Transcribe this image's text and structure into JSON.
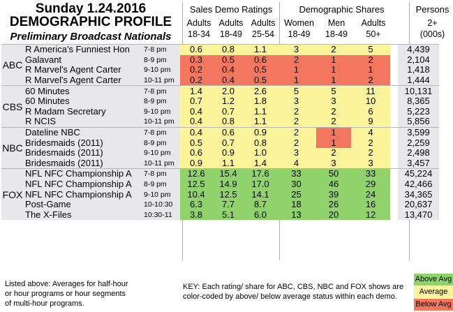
{
  "title": {
    "line1": "Sunday 1.24.2016",
    "line2": "DEMOGRAPHIC PROFILE",
    "line3": "Preliminary Broadcast Nationals"
  },
  "header": {
    "groups": [
      "Sales Demo Ratings",
      "Demographic Shares",
      "Persons"
    ],
    "columns": [
      [
        "Adults",
        "18-34"
      ],
      [
        "Adults",
        "18-49"
      ],
      [
        "Adults",
        "25-54"
      ],
      [
        "Women",
        "18-49"
      ],
      [
        "Men",
        "18-49"
      ],
      [
        "Adults",
        "50+"
      ],
      [
        "2+",
        "(000s)"
      ]
    ]
  },
  "networks": [
    {
      "name": "ABC",
      "rows": [
        {
          "show": "R America's Funniest Hon",
          "time": "7-8 pm",
          "vals": [
            "0.6",
            "0.8",
            "1.1",
            "3",
            "2",
            "5"
          ],
          "colors": [
            "av",
            "av",
            "av",
            "av",
            "av",
            "av"
          ],
          "persons": "4,439"
        },
        {
          "show": "Galavant",
          "time": "8-9 pm",
          "vals": [
            "0.3",
            "0.5",
            "0.6",
            "2",
            "1",
            "2"
          ],
          "colors": [
            "lo",
            "lo",
            "lo",
            "lo",
            "lo",
            "lo"
          ],
          "persons": "2,104"
        },
        {
          "show": "R Marvel's Agent Carter",
          "time": "9-10 pm",
          "vals": [
            "0.2",
            "0.4",
            "0.5",
            "1",
            "1",
            "1"
          ],
          "colors": [
            "lo",
            "lo",
            "lo",
            "lo",
            "lo",
            "lo"
          ],
          "persons": "1,418"
        },
        {
          "show": "R Marvel's Agent Carter",
          "time": "10-11 pm",
          "vals": [
            "0.2",
            "0.4",
            "0.5",
            "1",
            "1",
            "2"
          ],
          "colors": [
            "lo",
            "lo",
            "lo",
            "lo",
            "lo",
            "lo"
          ],
          "persons": "1,444"
        }
      ]
    },
    {
      "name": "CBS",
      "rows": [
        {
          "show": "60 Minutes",
          "time": "7-8 pm",
          "vals": [
            "1.4",
            "2.0",
            "2.6",
            "5",
            "5",
            "11"
          ],
          "colors": [
            "av",
            "av",
            "av",
            "av",
            "av",
            "av"
          ],
          "persons": "10,131"
        },
        {
          "show": "60 Minutes",
          "time": "8-9 pm",
          "vals": [
            "0.7",
            "1.2",
            "1.8",
            "3",
            "3",
            "10"
          ],
          "colors": [
            "av",
            "av",
            "av",
            "av",
            "av",
            "av"
          ],
          "persons": "8,365"
        },
        {
          "show": "R Madam Secretary",
          "time": "9-10 pm",
          "vals": [
            "0.4",
            "0.7",
            "1.1",
            "2",
            "2",
            "6"
          ],
          "colors": [
            "av",
            "av",
            "av",
            "av",
            "av",
            "av"
          ],
          "persons": "5,223"
        },
        {
          "show": "R NCIS",
          "time": "10-11 pm",
          "vals": [
            "0.4",
            "0.8",
            "1.1",
            "2",
            "2",
            "9"
          ],
          "colors": [
            "av",
            "av",
            "av",
            "av",
            "av",
            "av"
          ],
          "persons": "5,856"
        }
      ]
    },
    {
      "name": "NBC",
      "rows": [
        {
          "show": "Dateline NBC",
          "time": "7-8 pm",
          "vals": [
            "0.4",
            "0.6",
            "0.9",
            "2",
            "1",
            "4"
          ],
          "colors": [
            "av",
            "av",
            "av",
            "av",
            "lo",
            "av"
          ],
          "persons": "3,599"
        },
        {
          "show": "Bridesmaids (2011)",
          "time": "8-9 pm",
          "vals": [
            "0.5",
            "0.7",
            "0.8",
            "2",
            "1",
            "2"
          ],
          "colors": [
            "av",
            "av",
            "av",
            "av",
            "lo",
            "av"
          ],
          "persons": "2,259"
        },
        {
          "show": "Bridesmaids (2011)",
          "time": "9-10 pm",
          "vals": [
            "0.6",
            "0.9",
            "1.0",
            "3",
            "2",
            "2"
          ],
          "colors": [
            "av",
            "av",
            "av",
            "av",
            "av",
            "av"
          ],
          "persons": "2,498"
        },
        {
          "show": "Bridesmaids (2011)",
          "time": "10-11 pm",
          "vals": [
            "0.9",
            "1.1",
            "1.4",
            "4",
            "3",
            "3"
          ],
          "colors": [
            "av",
            "av",
            "av",
            "av",
            "av",
            "av"
          ],
          "persons": "3,457"
        }
      ]
    },
    {
      "name": "FOX",
      "rows": [
        {
          "show": "NFL NFC Championship A",
          "time": "7-8 pm",
          "vals": [
            "12.6",
            "15.4",
            "17.6",
            "33",
            "50",
            "33"
          ],
          "colors": [
            "hi",
            "hi",
            "hi",
            "hi",
            "hi",
            "hi"
          ],
          "persons": "45,224"
        },
        {
          "show": "NFL NFC Championship A",
          "time": "8-9 pm",
          "vals": [
            "12.5",
            "14.9",
            "17.0",
            "30",
            "46",
            "29"
          ],
          "colors": [
            "hi",
            "hi",
            "hi",
            "hi",
            "hi",
            "hi"
          ],
          "persons": "42,466"
        },
        {
          "show": "NFL NFC Championship A",
          "time": "9-10 pm",
          "vals": [
            "10.4",
            "12.5",
            "14.1",
            "25",
            "39",
            "24"
          ],
          "colors": [
            "hi",
            "hi",
            "hi",
            "hi",
            "hi",
            "hi"
          ],
          "persons": "34,365"
        },
        {
          "show": "Post-Game",
          "time": "10-10:30",
          "vals": [
            "6.3",
            "7.7",
            "8.7",
            "18",
            "26",
            "16"
          ],
          "colors": [
            "hi",
            "hi",
            "hi",
            "hi",
            "hi",
            "hi"
          ],
          "persons": "20,637"
        },
        {
          "show": "The X-Files",
          "time": "10:30-11",
          "vals": [
            "3.8",
            "5.1",
            "6.0",
            "13",
            "20",
            "12"
          ],
          "colors": [
            "hi",
            "hi",
            "hi",
            "hi",
            "hi",
            "hi"
          ],
          "persons": "13,470"
        }
      ]
    }
  ],
  "footer": {
    "note": "Listed above: Averages for half-hour or hour programs or hour segments of multi-hour programs.",
    "key": "KEY: Each rating/ share for ABC, CBS, NBC and FOX shows are color-coded by above/ below average status within each demo.",
    "legend": [
      {
        "label": "Above Avg",
        "color": "#90d36a"
      },
      {
        "label": "Average",
        "color": "#fcf49a"
      },
      {
        "label": "Below Avg",
        "color": "#f2775e"
      }
    ]
  }
}
